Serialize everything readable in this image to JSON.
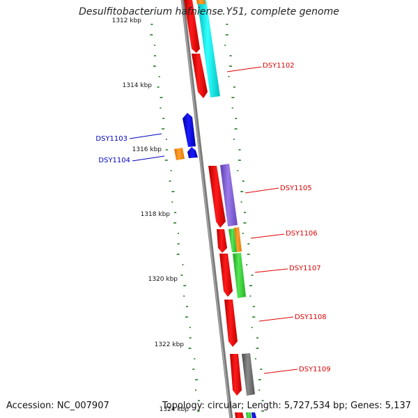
{
  "title": "Desulfitobacterium hafniense Y51, complete genome",
  "footer": {
    "accession": "Accession: NC_007907",
    "topology": "Topology: circular; Length: 5,727,534 bp; Genes: 5,137"
  },
  "kbp_labels": [
    "1312 kbp",
    "1314 kbp",
    "1316 kbp",
    "1318 kbp",
    "1320 kbp",
    "1322 kbp",
    "1324 kbp"
  ],
  "gene_labels": [
    {
      "name": "DSY1102",
      "color": "#dd0000"
    },
    {
      "name": "DSY1103",
      "color": "#0000bb"
    },
    {
      "name": "DSY1104",
      "color": "#0000bb"
    },
    {
      "name": "DSY1105",
      "color": "#dd0000"
    },
    {
      "name": "DSY1106",
      "color": "#dd0000"
    },
    {
      "name": "DSY1107",
      "color": "#dd0000"
    },
    {
      "name": "DSY1108",
      "color": "#dd0000"
    },
    {
      "name": "DSY1109",
      "color": "#dd0000"
    }
  ],
  "colors": {
    "backbone": "#7a7a7a",
    "forward_strand": "#ff0000",
    "reverse_strand": "#0000ee",
    "gc_ticks": "#1f7a1f",
    "cyan": "#00e0e0",
    "orange": "#ff8800",
    "purple": "#7b57d6",
    "green": "#33cc33",
    "gray": "#666666"
  }
}
